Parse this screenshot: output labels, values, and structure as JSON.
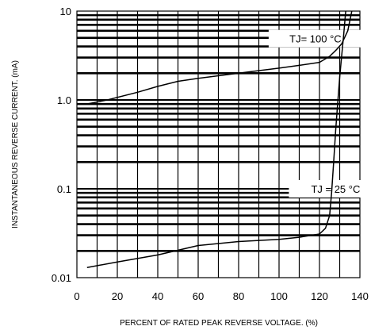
{
  "chart_data": {
    "type": "line",
    "title": "",
    "xlabel": "PERCENT OF RATED PEAK REVERSE VOLTAGE. (%)",
    "ylabel": "INSTANTANEOUS REVERSE CURRENT. (mA)",
    "xlim": [
      0,
      140
    ],
    "ylim": [
      0.01,
      10
    ],
    "yscale": "log",
    "grid": true,
    "x_ticks": [
      0,
      20,
      40,
      60,
      80,
      100,
      120,
      140
    ],
    "x_tick_labels": [
      "0",
      "20",
      "40",
      "60",
      "80",
      "100",
      "120",
      "140"
    ],
    "y_ticks": [
      0.01,
      0.1,
      1,
      10
    ],
    "y_tick_labels": [
      "0.01",
      "0.1",
      "1.0",
      "10"
    ],
    "series": [
      {
        "name": "",
        "x": [
          5,
          15,
          30,
          40,
          50,
          60,
          80,
          100,
          110,
          120,
          125,
          128,
          131,
          134,
          136
        ],
        "y": [
          0.9,
          1.0,
          1.22,
          1.42,
          1.62,
          1.75,
          2.0,
          2.28,
          2.45,
          2.65,
          3.1,
          3.6,
          4.3,
          6.0,
          10
        ]
      },
      {
        "name": "",
        "x": [
          5,
          20,
          40,
          60,
          80,
          100,
          110,
          120,
          123,
          125,
          126,
          127,
          128,
          129,
          130,
          131,
          132,
          133
        ],
        "y": [
          0.013,
          0.015,
          0.018,
          0.023,
          0.0255,
          0.027,
          0.0285,
          0.031,
          0.036,
          0.05,
          0.09,
          0.2,
          0.45,
          0.9,
          1.8,
          3.2,
          5.5,
          10
        ]
      }
    ],
    "annotations": [
      {
        "text": "TJ= 100 °C"
      },
      {
        "text": "TJ = 25 °C"
      }
    ]
  }
}
